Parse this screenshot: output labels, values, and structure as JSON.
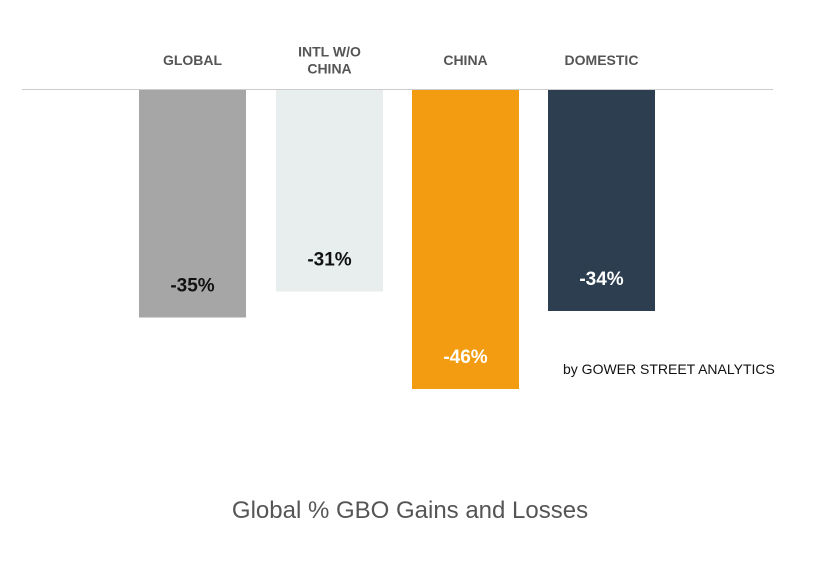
{
  "chart_data": {
    "type": "bar",
    "categories": [
      "GLOBAL",
      "INTL W/O CHINA",
      "CHINA",
      "DOMESTIC"
    ],
    "category_lines": [
      [
        "GLOBAL"
      ],
      [
        "INTL W/O",
        "CHINA"
      ],
      [
        "CHINA"
      ],
      [
        "DOMESTIC"
      ]
    ],
    "values": [
      -35,
      -31,
      -46,
      -34
    ],
    "value_labels": [
      "-35%",
      "-31%",
      "-46%",
      "-34%"
    ],
    "colors": [
      "#a6a6a6",
      "#e8eded",
      "#f39c12",
      "#2c3e50"
    ],
    "label_colors": [
      "#111111",
      "#111111",
      "#ffffff",
      "#ffffff"
    ],
    "baseline_color": "#cccccc",
    "ylim": [
      -50,
      0
    ],
    "grid": false
  },
  "credit": "by GOWER STREET ANALYTICS",
  "caption": "Global % GBO Gains and Losses"
}
